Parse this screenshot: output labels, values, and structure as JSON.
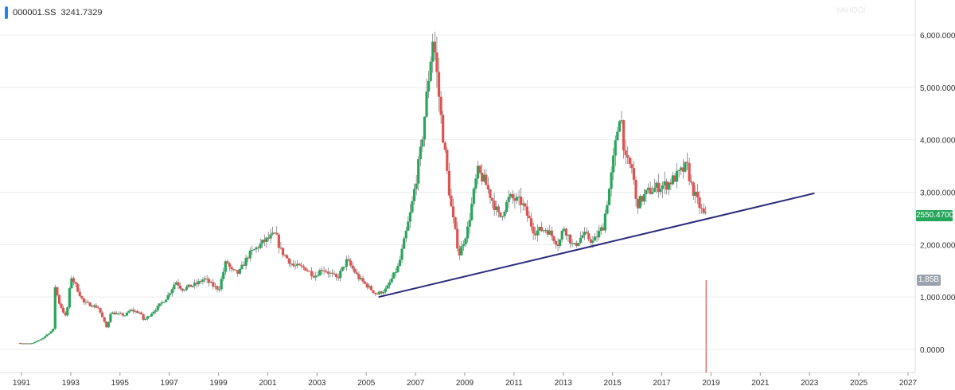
{
  "legend": {
    "symbol": "000001.SS",
    "value": "3241.7329"
  },
  "watermark": "YAHOO!",
  "price_tag": "2550.4700",
  "volume_tag": "1.85B",
  "colors": {
    "up": "#26a65b",
    "down": "#e0524f",
    "trend": "#2a2a7a",
    "grid": "#ececec",
    "price_tag": "#26a65b",
    "volume_tag": "#9aa3ad",
    "legend_bar": "#1e88e5"
  },
  "chart_data": {
    "type": "candlestick",
    "title": "",
    "xlabel": "",
    "ylabel": "",
    "grid": true,
    "ylim": [
      -450,
      6600
    ],
    "xlim": [
      1990.6,
      2027.8
    ],
    "y_ticks": [
      "6,000.0000",
      "5,000.0000",
      "4,000.0000",
      "3,000.0000",
      "2,000.0000",
      "1,000.0000",
      "0.0000"
    ],
    "y_tick_values": [
      6000,
      5000,
      4000,
      3000,
      2000,
      1000,
      0
    ],
    "x_ticks": [
      "1991",
      "1993",
      "1995",
      "1997",
      "1999",
      "2001",
      "2003",
      "2005",
      "2007",
      "2009",
      "2011",
      "2013",
      "2015",
      "2017",
      "2019",
      "2021",
      "2023",
      "2025",
      "2027"
    ],
    "x_tick_values": [
      1991,
      1993,
      1995,
      1997,
      1999,
      2001,
      2003,
      2005,
      2007,
      2009,
      2011,
      2013,
      2015,
      2017,
      2019,
      2021,
      2023,
      2025,
      2027
    ],
    "last_price": 2550.47,
    "volume_spike": {
      "x": 2018.8,
      "label": "1.85B"
    },
    "trendline": {
      "x": [
        2005.5,
        2023.2
      ],
      "y": [
        1000,
        2980
      ]
    },
    "series": [
      {
        "price_path": [
          [
            1990.95,
            120
          ],
          [
            1991.5,
            110
          ],
          [
            1991.9,
            200
          ],
          [
            1992.3,
            350
          ],
          [
            1992.4,
            400
          ],
          [
            1992.45,
            1200
          ],
          [
            1992.6,
            900
          ],
          [
            1992.9,
            600
          ],
          [
            1993.1,
            1400
          ],
          [
            1993.3,
            1200
          ],
          [
            1993.6,
            900
          ],
          [
            1994.2,
            800
          ],
          [
            1994.55,
            400
          ],
          [
            1994.7,
            700
          ],
          [
            1995.3,
            650
          ],
          [
            1995.5,
            750
          ],
          [
            1995.9,
            700
          ],
          [
            1996.05,
            550
          ],
          [
            1996.6,
            800
          ],
          [
            1997.0,
            1000
          ],
          [
            1997.35,
            1300
          ],
          [
            1997.6,
            1150
          ],
          [
            1998.2,
            1250
          ],
          [
            1998.5,
            1350
          ],
          [
            1998.9,
            1200
          ],
          [
            1999.1,
            1150
          ],
          [
            1999.4,
            1700
          ],
          [
            1999.6,
            1500
          ],
          [
            1999.9,
            1450
          ],
          [
            2000.3,
            1800
          ],
          [
            2000.9,
            2050
          ],
          [
            2001.4,
            2200
          ],
          [
            2001.6,
            1900
          ],
          [
            2002.1,
            1600
          ],
          [
            2002.6,
            1550
          ],
          [
            2003.0,
            1400
          ],
          [
            2003.3,
            1550
          ],
          [
            2003.9,
            1350
          ],
          [
            2004.3,
            1700
          ],
          [
            2004.8,
            1350
          ],
          [
            2005.5,
            1050
          ],
          [
            2005.9,
            1150
          ],
          [
            2006.4,
            1600
          ],
          [
            2006.9,
            2650
          ],
          [
            2007.3,
            3800
          ],
          [
            2007.8,
            6000
          ],
          [
            2008.1,
            4500
          ],
          [
            2008.5,
            2800
          ],
          [
            2008.85,
            1800
          ],
          [
            2009.2,
            2300
          ],
          [
            2009.6,
            3400
          ],
          [
            2009.9,
            3200
          ],
          [
            2010.5,
            2500
          ],
          [
            2010.9,
            2900
          ],
          [
            2011.4,
            2800
          ],
          [
            2011.9,
            2250
          ],
          [
            2012.4,
            2300
          ],
          [
            2012.9,
            2000
          ],
          [
            2013.1,
            2350
          ],
          [
            2013.5,
            1950
          ],
          [
            2013.9,
            2200
          ],
          [
            2014.3,
            2050
          ],
          [
            2014.7,
            2350
          ],
          [
            2015.0,
            3200
          ],
          [
            2015.4,
            4600
          ],
          [
            2015.6,
            3600
          ],
          [
            2015.9,
            3450
          ],
          [
            2016.05,
            2750
          ],
          [
            2016.5,
            3000
          ],
          [
            2016.9,
            3100
          ],
          [
            2017.3,
            3150
          ],
          [
            2017.8,
            3350
          ],
          [
            2018.1,
            3500
          ],
          [
            2018.3,
            3100
          ],
          [
            2018.55,
            2800
          ],
          [
            2018.8,
            2550
          ]
        ]
      }
    ]
  }
}
